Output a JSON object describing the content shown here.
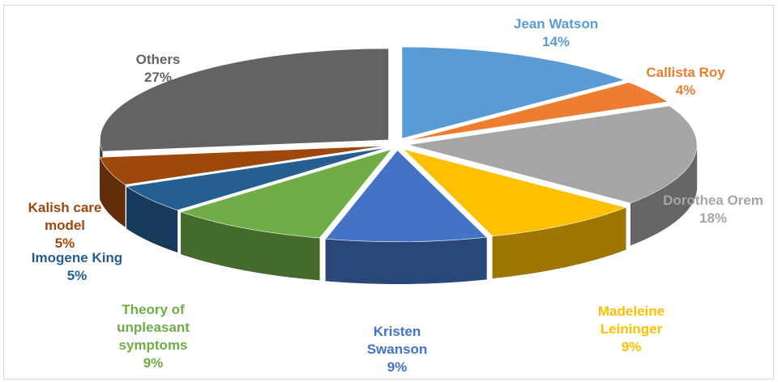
{
  "chart_data": {
    "type": "pie",
    "style": "3d-exploded",
    "title": "",
    "legend": "none",
    "data_labels": "category and percentage",
    "series": [
      {
        "name": "",
        "slices": [
          {
            "label": "Jean Watson",
            "value": 14,
            "value_label": "14%",
            "color": "#5b9bd5"
          },
          {
            "label": "Callista Roy",
            "value": 4,
            "value_label": "4%",
            "color": "#ed7d31"
          },
          {
            "label": "Dorothea Orem",
            "value": 18,
            "value_label": "18%",
            "color": "#a5a5a5"
          },
          {
            "label": "Madeleine Leininger",
            "value": 9,
            "value_label": "9%",
            "color": "#ffc000"
          },
          {
            "label": "Kristen Swanson",
            "value": 9,
            "value_label": "9%",
            "color": "#4472c4"
          },
          {
            "label": "Theory of unpleasant symptoms",
            "value": 9,
            "value_label": "9%",
            "color": "#70ad47"
          },
          {
            "label": "Imogene King",
            "value": 5,
            "value_label": "5%",
            "color": "#255e91"
          },
          {
            "label": "Kalish care model",
            "value": 5,
            "value_label": "5%",
            "color": "#9e480e"
          },
          {
            "label": "Others",
            "value": 27,
            "value_label": "27%",
            "color": "#636363"
          }
        ]
      }
    ]
  }
}
